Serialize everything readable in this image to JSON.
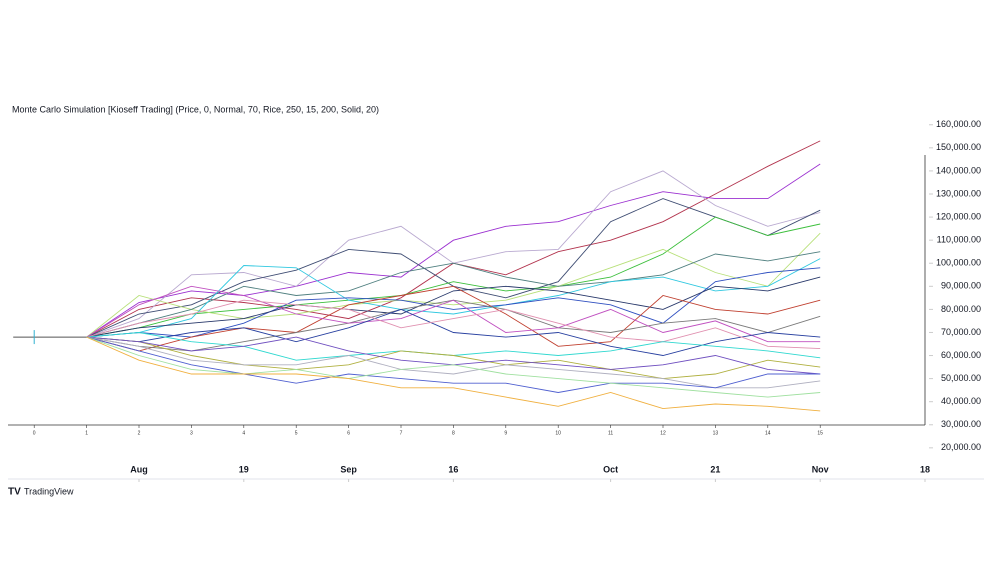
{
  "chart_data": {
    "type": "line",
    "title": "Monte Carlo Simulation [Kioseff Trading] (Price, 0, Normal, 70, Rice, 250, 15, 200, Solid, 20)",
    "footer": "TradingView",
    "x": [
      1,
      2,
      3,
      4,
      5,
      6,
      7,
      8,
      9,
      10,
      11,
      12,
      13,
      14,
      15
    ],
    "xlim": [
      -0.5,
      17
    ],
    "xticks": [
      0,
      1,
      2,
      3,
      4,
      5,
      6,
      7,
      8,
      9,
      10,
      11,
      12,
      13,
      14,
      15
    ],
    "time_ticks": [
      {
        "value": 2,
        "label": "Aug"
      },
      {
        "value": 4,
        "label": "19"
      },
      {
        "value": 6,
        "label": "Sep"
      },
      {
        "value": 8,
        "label": "16"
      },
      {
        "value": 11,
        "label": "Oct"
      },
      {
        "value": 13,
        "label": "21"
      },
      {
        "value": 15,
        "label": "Nov"
      },
      {
        "value": 17,
        "label": "18"
      }
    ],
    "ylim": [
      6500,
      169000
    ],
    "yticks": [
      {
        "value": 20000,
        "label": "20,000.00"
      },
      {
        "value": 30000,
        "label": "30,000.00"
      },
      {
        "value": 40000,
        "label": "40,000.00"
      },
      {
        "value": 50000,
        "label": "50,000.00"
      },
      {
        "value": 60000,
        "label": "60,000.00"
      },
      {
        "value": 70000,
        "label": "70,000.00"
      },
      {
        "value": 80000,
        "label": "80,000.00"
      },
      {
        "value": 90000,
        "label": "90,000.00"
      },
      {
        "value": 100000,
        "label": "100,000.00"
      },
      {
        "value": 110000,
        "label": "110,000.00"
      },
      {
        "value": 120000,
        "label": "120,000.00"
      },
      {
        "value": 130000,
        "label": "130,000.00"
      },
      {
        "value": 140000,
        "label": "140,000.00"
      },
      {
        "value": 150000,
        "label": "150,000.00"
      },
      {
        "value": 160000,
        "label": "160,000.00"
      }
    ],
    "history": {
      "x": [
        -0.4,
        1
      ],
      "values": [
        68000,
        68000
      ],
      "color": "#555555"
    },
    "series": [
      {
        "color": "#b2334d",
        "values": [
          68000,
          80000,
          85000,
          83000,
          80000,
          76000,
          85000,
          100000,
          95000,
          105000,
          110000,
          118000,
          130000,
          142000,
          153000
        ]
      },
      {
        "color": "#9b30d0",
        "values": [
          68000,
          83000,
          88000,
          86000,
          90000,
          96000,
          94000,
          110000,
          116000,
          118000,
          125000,
          131000,
          128000,
          128000,
          143000
        ]
      },
      {
        "color": "#b9a9d0",
        "values": [
          68000,
          76000,
          95000,
          96000,
          90000,
          110000,
          116000,
          100000,
          105000,
          106000,
          131000,
          140000,
          125000,
          116000,
          122000
        ]
      },
      {
        "color": "#3f4d73",
        "values": [
          68000,
          78000,
          82000,
          92000,
          97000,
          106000,
          104000,
          90000,
          85000,
          92000,
          118000,
          128000,
          120000,
          112000,
          123000
        ]
      },
      {
        "color": "#3cbf3c",
        "values": [
          68000,
          72000,
          78000,
          80000,
          82000,
          84000,
          86000,
          92000,
          88000,
          90000,
          94000,
          104000,
          120000,
          112000,
          117000
        ]
      },
      {
        "color": "#b8e07a",
        "values": [
          68000,
          86000,
          80000,
          76000,
          78000,
          82000,
          84000,
          82000,
          84000,
          90000,
          98000,
          106000,
          96000,
          90000,
          113000
        ]
      },
      {
        "color": "#4f7f7f",
        "values": [
          68000,
          74000,
          80000,
          90000,
          86000,
          88000,
          96000,
          100000,
          94000,
          90000,
          92000,
          95000,
          104000,
          101000,
          105000
        ]
      },
      {
        "color": "#30c8e0",
        "values": [
          68000,
          70000,
          76000,
          99000,
          98000,
          84000,
          80000,
          78000,
          82000,
          86000,
          92000,
          94000,
          88000,
          90000,
          102000
        ]
      },
      {
        "color": "#3050c0",
        "values": [
          68000,
          70000,
          68000,
          74000,
          84000,
          85000,
          84000,
          80000,
          82000,
          85000,
          82000,
          74000,
          92000,
          96000,
          98000
        ]
      },
      {
        "color": "#28386a",
        "values": [
          68000,
          72000,
          74000,
          76000,
          82000,
          80000,
          78000,
          88000,
          90000,
          88000,
          84000,
          80000,
          90000,
          88000,
          94000
        ]
      },
      {
        "color": "#c04030",
        "values": [
          68000,
          62000,
          68000,
          72000,
          70000,
          82000,
          86000,
          90000,
          78000,
          64000,
          66000,
          86000,
          80000,
          78000,
          84000
        ]
      },
      {
        "color": "#7a7a7a",
        "values": [
          68000,
          64000,
          62000,
          66000,
          70000,
          74000,
          80000,
          84000,
          80000,
          72000,
          70000,
          74000,
          76000,
          70000,
          77000
        ]
      },
      {
        "color": "#c050c0",
        "values": [
          68000,
          82000,
          90000,
          86000,
          78000,
          74000,
          76000,
          84000,
          70000,
          72000,
          80000,
          70000,
          75000,
          66000,
          66000
        ]
      },
      {
        "color": "#2840a0",
        "values": [
          68000,
          66000,
          70000,
          72000,
          66000,
          72000,
          80000,
          70000,
          68000,
          70000,
          64000,
          60000,
          66000,
          70000,
          68000
        ]
      },
      {
        "color": "#e090b0",
        "values": [
          68000,
          74000,
          78000,
          84000,
          82000,
          80000,
          72000,
          76000,
          80000,
          74000,
          68000,
          66000,
          72000,
          64000,
          63000
        ]
      },
      {
        "color": "#30d8d0",
        "values": [
          68000,
          70000,
          66000,
          64000,
          58000,
          60000,
          62000,
          60000,
          62000,
          60000,
          62000,
          66000,
          64000,
          62000,
          59000
        ]
      },
      {
        "color": "#b0b040",
        "values": [
          68000,
          66000,
          60000,
          56000,
          54000,
          56000,
          62000,
          60000,
          56000,
          58000,
          54000,
          50000,
          52000,
          58000,
          55000
        ]
      },
      {
        "color": "#7050c0",
        "values": [
          68000,
          66000,
          62000,
          64000,
          68000,
          62000,
          58000,
          56000,
          58000,
          56000,
          54000,
          56000,
          60000,
          54000,
          52000
        ]
      },
      {
        "color": "#b0b0c0",
        "values": [
          68000,
          64000,
          58000,
          56000,
          56000,
          60000,
          54000,
          52000,
          56000,
          54000,
          52000,
          50000,
          46000,
          46000,
          49000
        ]
      },
      {
        "color": "#5060d0",
        "values": [
          68000,
          62000,
          56000,
          52000,
          48000,
          52000,
          50000,
          48000,
          48000,
          44000,
          48000,
          48000,
          46000,
          52000,
          52000
        ]
      },
      {
        "color": "#a0e0a0",
        "values": [
          68000,
          60000,
          54000,
          52000,
          54000,
          50000,
          54000,
          56000,
          52000,
          50000,
          48000,
          46000,
          44000,
          42000,
          44000
        ]
      },
      {
        "color": "#f0b040",
        "values": [
          68000,
          58000,
          52000,
          52000,
          52000,
          50000,
          46000,
          46000,
          42000,
          38000,
          44000,
          37000,
          39000,
          38000,
          36000
        ]
      }
    ]
  }
}
